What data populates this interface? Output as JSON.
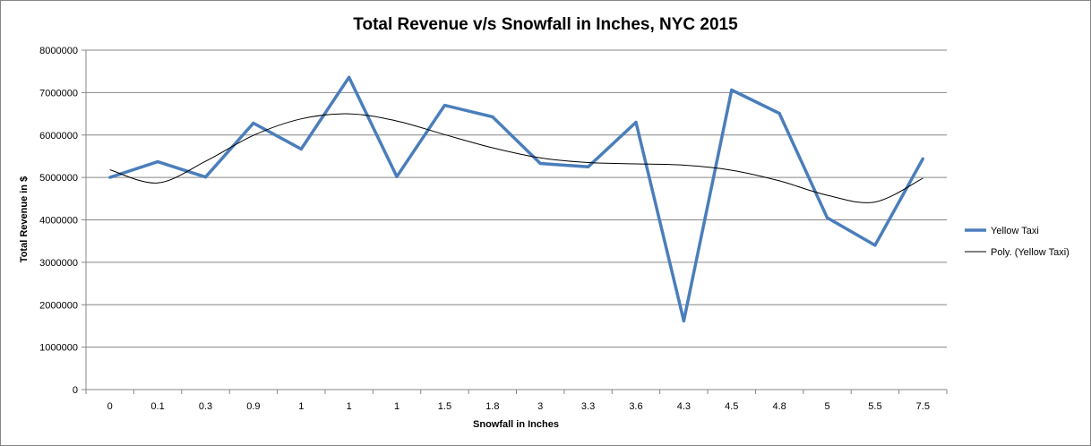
{
  "chart_data": {
    "type": "line",
    "title": "Total Revenue v/s Snowfall in Inches, NYC 2015",
    "xlabel": "Snowfall  in Inches",
    "ylabel": "Total Revenue in $",
    "categories": [
      "0",
      "0.1",
      "0.3",
      "0.9",
      "1",
      "1",
      "1",
      "1.5",
      "1.8",
      "3",
      "3.3",
      "3.6",
      "4.3",
      "4.5",
      "4.8",
      "5",
      "5.5",
      "7.5"
    ],
    "ylim": [
      0,
      8000000
    ],
    "yticks": [
      "0",
      "1000000",
      "2000000",
      "3000000",
      "4000000",
      "5000000",
      "6000000",
      "7000000",
      "8000000"
    ],
    "grid": true,
    "legend_position": "right",
    "series": [
      {
        "name": "Yellow Taxi",
        "color": "#4a7ebb",
        "values": [
          5000000,
          5370000,
          5010000,
          6280000,
          5670000,
          7360000,
          5020000,
          6700000,
          6430000,
          5330000,
          5250000,
          6300000,
          1620000,
          7060000,
          6510000,
          4050000,
          3400000,
          5440000
        ]
      }
    ],
    "trendline": {
      "name": "Poly. (Yellow Taxi)",
      "color": "#000000",
      "values": [
        5180000,
        4870000,
        5380000,
        5990000,
        6380000,
        6500000,
        6330000,
        6010000,
        5700000,
        5460000,
        5350000,
        5320000,
        5290000,
        5170000,
        4920000,
        4580000,
        4420000,
        4980000
      ]
    }
  }
}
